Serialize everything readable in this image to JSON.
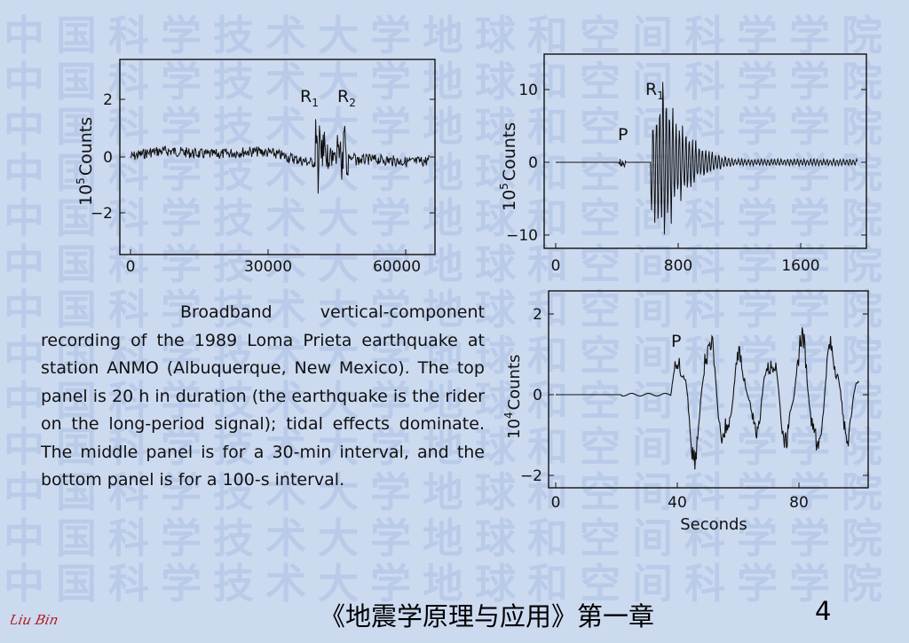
{
  "watermark": {
    "text": "中国科学技术大学地球和空间科学学院"
  },
  "panels": [
    {
      "id": "top",
      "ylabel_base": "10",
      "ylabel_exp": "5",
      "ylabel_unit": "Counts",
      "xticks": [
        "0",
        "30000",
        "60000"
      ],
      "yticks": [
        "2",
        "0",
        "−2"
      ],
      "annotations": {
        "r1": "R",
        "r1_sub": "1",
        "r2": "R",
        "r2_sub": "2"
      }
    },
    {
      "id": "middle",
      "ylabel_base": "10",
      "ylabel_exp": "5",
      "ylabel_unit": "Counts",
      "xticks": [
        "0",
        "800",
        "1600"
      ],
      "yticks": [
        "10",
        "0",
        "−10"
      ],
      "annotations": {
        "p": "P",
        "r1": "R",
        "r1_sub": "1"
      }
    },
    {
      "id": "bottom",
      "ylabel_base": "10",
      "ylabel_exp": "4",
      "ylabel_unit": "Counts",
      "xlabel": "Seconds",
      "xticks": [
        "0",
        "40",
        "80"
      ],
      "yticks": [
        "2",
        "0",
        "−2"
      ],
      "annotations": {
        "p": "P"
      }
    }
  ],
  "caption": "Broadband vertical-component recording of the 1989 Loma Prieta earthquake at station ANMO (Albuquerque, New Mexico). The top panel is 20 h in duration (the earthquake is the rider on the long-period signal); tidal effects dominate. The middle panel is for a 30-min interval, and the bottom panel is for a 100-s interval.",
  "footer": {
    "title": "《地震学原理与应用》第一章",
    "page": "4",
    "signature": "Liu Bin"
  },
  "colors": {
    "background": "#ccdaf0",
    "watermark": "#b9cbe8",
    "ink": "#111111",
    "signature": "#b01818"
  }
}
